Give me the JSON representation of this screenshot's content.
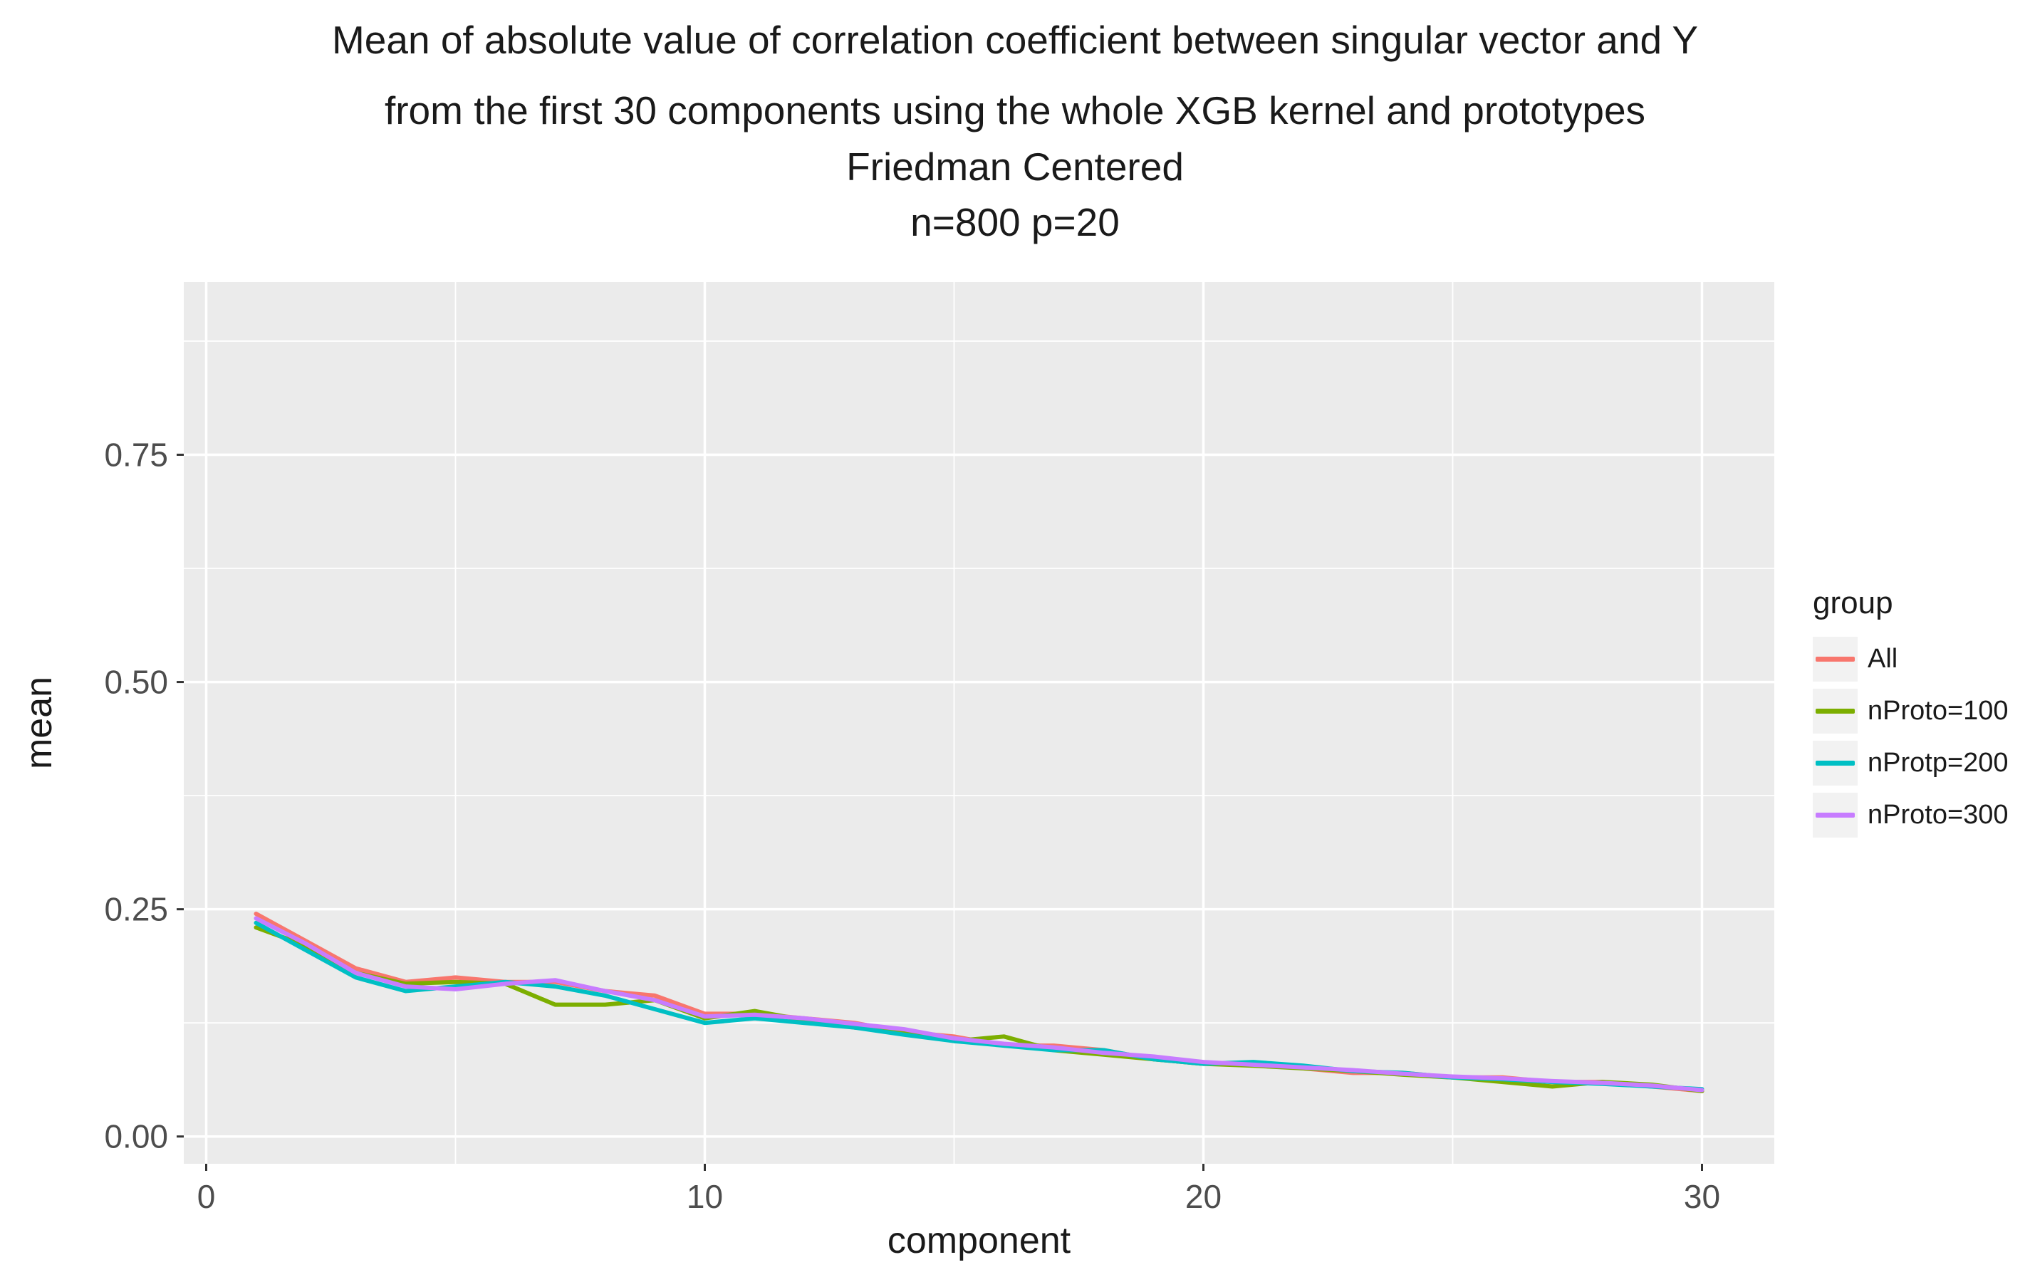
{
  "title": {
    "line1": "Mean of absolute value of correlation coefficient between singular vector and Y",
    "line2": "from the first 30 components using the whole XGB kernel and prototypes",
    "line3": "Friedman Centered",
    "line4": "n=800 p=20"
  },
  "chart_data": {
    "type": "line",
    "title": "Mean of absolute value of correlation coefficient between singular vector and Y from the first 30 components using the whole XGB kernel and prototypes Friedman Centered n=800 p=20",
    "xlabel": "component",
    "ylabel": "mean",
    "xlim": [
      -0.45,
      31.45
    ],
    "ylim": [
      -0.03,
      0.94
    ],
    "x_major_ticks": [
      0,
      10,
      20,
      30
    ],
    "x_minor_ticks": [
      5,
      15,
      25
    ],
    "y_major_ticks": [
      0,
      0.25,
      0.5,
      0.75
    ],
    "y_minor_ticks": [
      0.125,
      0.375,
      0.625,
      0.875
    ],
    "x_tick_labels": [
      "0",
      "10",
      "20",
      "30"
    ],
    "y_tick_labels": [
      "0.00",
      "0.25",
      "0.50",
      "0.75"
    ],
    "grid": true,
    "legend_title": "group",
    "legend_position": "right",
    "x": [
      1,
      2,
      3,
      4,
      5,
      6,
      7,
      8,
      9,
      10,
      11,
      12,
      13,
      14,
      15,
      16,
      17,
      18,
      19,
      20,
      21,
      22,
      23,
      24,
      25,
      26,
      27,
      28,
      29,
      30
    ],
    "series": [
      {
        "name": "All",
        "color": "#F8766D",
        "values": [
          0.245,
          0.215,
          0.185,
          0.17,
          0.175,
          0.17,
          0.17,
          0.16,
          0.155,
          0.135,
          0.135,
          0.13,
          0.125,
          0.115,
          0.11,
          0.1,
          0.1,
          0.095,
          0.085,
          0.08,
          0.08,
          0.075,
          0.07,
          0.07,
          0.065,
          0.065,
          0.06,
          0.06,
          0.055,
          0.05
        ],
        "legend_label": "All"
      },
      {
        "name": "nProto=100",
        "color": "#7CAE00",
        "values": [
          0.23,
          0.21,
          0.18,
          0.168,
          0.17,
          0.168,
          0.145,
          0.145,
          0.15,
          0.13,
          0.138,
          0.128,
          0.12,
          0.115,
          0.105,
          0.11,
          0.095,
          0.09,
          0.085,
          0.08,
          0.078,
          0.075,
          0.072,
          0.068,
          0.065,
          0.06,
          0.055,
          0.06,
          0.057,
          0.05
        ],
        "legend_label": "nProto=100"
      },
      {
        "name": "nProtp=200",
        "color": "#00BFC4",
        "values": [
          0.235,
          0.205,
          0.175,
          0.16,
          0.165,
          0.17,
          0.165,
          0.155,
          0.14,
          0.125,
          0.13,
          0.125,
          0.12,
          0.112,
          0.105,
          0.1,
          0.095,
          0.095,
          0.085,
          0.08,
          0.082,
          0.078,
          0.072,
          0.07,
          0.065,
          0.063,
          0.06,
          0.058,
          0.055,
          0.052
        ],
        "legend_label": "nProtp=200"
      },
      {
        "name": "nProto=300",
        "color": "#C77CFF",
        "values": [
          0.24,
          0.212,
          0.18,
          0.165,
          0.162,
          0.168,
          0.172,
          0.16,
          0.15,
          0.132,
          0.134,
          0.13,
          0.124,
          0.118,
          0.108,
          0.102,
          0.098,
          0.092,
          0.088,
          0.082,
          0.079,
          0.076,
          0.073,
          0.069,
          0.066,
          0.064,
          0.061,
          0.059,
          0.056,
          0.051
        ],
        "legend_label": "nProto=300"
      }
    ]
  },
  "colors": {
    "panel_bg": "#EBEBEB",
    "grid_major": "#FFFFFF",
    "grid_minor": "#FFFFFF",
    "axis_tick_text": "#4D4D4D",
    "tick_mark": "#333333",
    "legend_key_bg": "#F2F2F2",
    "title_text": "#1a1a1a"
  }
}
